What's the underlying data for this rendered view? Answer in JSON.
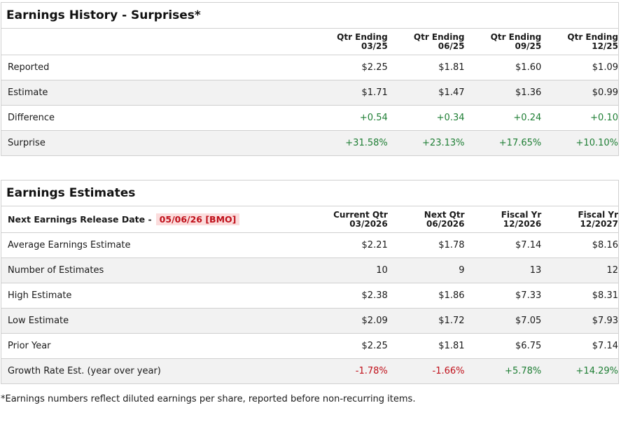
{
  "history": {
    "title": "Earnings History - Surprises*",
    "columns": [
      {
        "line1": "Qtr Ending",
        "line2": "03/25"
      },
      {
        "line1": "Qtr Ending",
        "line2": "06/25"
      },
      {
        "line1": "Qtr Ending",
        "line2": "09/25"
      },
      {
        "line1": "Qtr Ending",
        "line2": "12/25"
      }
    ],
    "rows": [
      {
        "label": "Reported",
        "values": [
          "$2.25",
          "$1.81",
          "$1.60",
          "$1.09"
        ]
      },
      {
        "label": "Estimate",
        "values": [
          "$1.71",
          "$1.47",
          "$1.36",
          "$0.99"
        ]
      },
      {
        "label": "Difference",
        "values": [
          "+0.54",
          "+0.34",
          "+0.24",
          "+0.10"
        ]
      },
      {
        "label": "Surprise",
        "values": [
          "+31.58%",
          "+23.13%",
          "+17.65%",
          "+10.10%"
        ]
      }
    ]
  },
  "estimates": {
    "title": "Earnings Estimates",
    "next_release_label": "Next Earnings Release Date -",
    "next_release_date": "05/06/26 [BMO]",
    "columns": [
      {
        "line1": "Current Qtr",
        "line2": "03/2026"
      },
      {
        "line1": "Next Qtr",
        "line2": "06/2026"
      },
      {
        "line1": "Fiscal Yr",
        "line2": "12/2026"
      },
      {
        "line1": "Fiscal Yr",
        "line2": "12/2027"
      }
    ],
    "rows": [
      {
        "label": "Average Earnings Estimate",
        "values": [
          "$2.21",
          "$1.78",
          "$7.14",
          "$8.16"
        ]
      },
      {
        "label": "Number of Estimates",
        "values": [
          "10",
          "9",
          "13",
          "12"
        ]
      },
      {
        "label": "High Estimate",
        "values": [
          "$2.38",
          "$1.86",
          "$7.33",
          "$8.31"
        ]
      },
      {
        "label": "Low Estimate",
        "values": [
          "$2.09",
          "$1.72",
          "$7.05",
          "$7.93"
        ]
      },
      {
        "label": "Prior Year",
        "values": [
          "$2.25",
          "$1.81",
          "$6.75",
          "$7.14"
        ]
      },
      {
        "label": "Growth Rate Est. (year over year)",
        "values": [
          "-1.78%",
          "-1.66%",
          "+5.78%",
          "+14.29%"
        ]
      }
    ]
  },
  "footnote": "*Earnings numbers reflect diluted earnings per share, reported before non-recurring items.",
  "colors": {
    "positive": "#1e7e34",
    "negative": "#c0101a",
    "badge_bg": "#fbdcdc",
    "alt_row": "#f2f2f2"
  }
}
